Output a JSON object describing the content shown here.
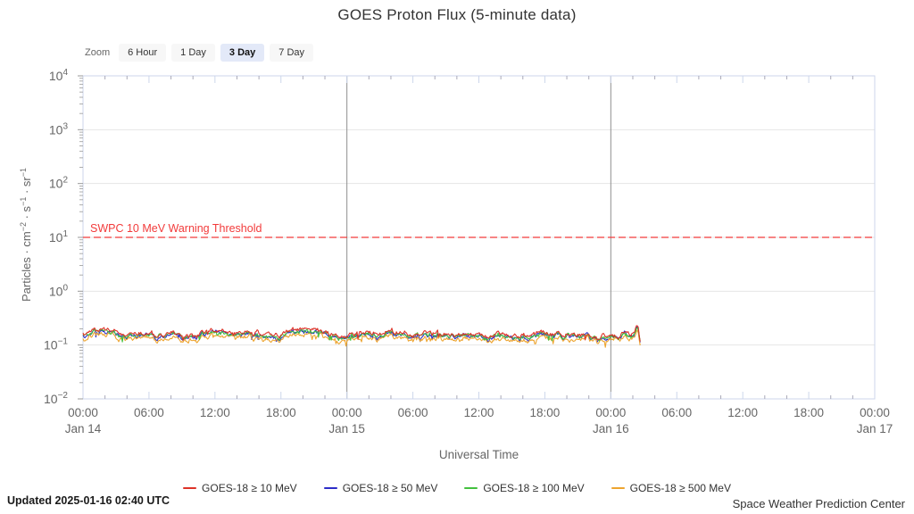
{
  "page": {
    "title": "GOES Proton Flux (5-minute data)"
  },
  "zoom_toolbar": {
    "label": "Zoom",
    "options": [
      "6 Hour",
      "1 Day",
      "3 Day",
      "7 Day"
    ],
    "selected": "3 Day"
  },
  "chart_data": {
    "type": "line",
    "title": "GOES Proton Flux (5-minute data)",
    "xlabel": "Universal Time",
    "ylabel": "Particles · cm⁻² · s⁻¹ · sr⁻¹",
    "ylabel_parts": [
      {
        "t": "Particles · cm"
      },
      {
        "t": "−2",
        "sup": true
      },
      {
        "t": " · s"
      },
      {
        "t": "−1",
        "sup": true
      },
      {
        "t": " · sr"
      },
      {
        "t": "−1",
        "sup": true
      }
    ],
    "x_axis": {
      "total_hours": 72,
      "major_tick_hours": 6,
      "minor_tick_hours": 2,
      "time_labels": [
        "00:00",
        "06:00",
        "12:00",
        "18:00"
      ],
      "day_labels": [
        "Jan 14",
        "Jan 15",
        "Jan 16",
        "Jan 17"
      ]
    },
    "y_axis": {
      "scale": "log",
      "exponent_ticks": [
        4,
        3,
        2,
        1,
        0,
        -1,
        -2
      ],
      "range": [
        0.01,
        10000
      ]
    },
    "grid": {
      "horizontal_decades": true,
      "day_separators": [
        "Jan 15 00:00",
        "Jan 16 00:00"
      ]
    },
    "threshold": {
      "label": "SWPC 10 MeV Warning Threshold",
      "value": 10,
      "color": "#f23b3b"
    },
    "series": [
      {
        "name": "GOES-18 ≥ 10 MeV",
        "color": "#dd3328",
        "baseline_flux": 0.162
      },
      {
        "name": "GOES-18 ≥ 50 MeV",
        "color": "#2d2dc8",
        "baseline_flux": 0.148
      },
      {
        "name": "GOES-18 ≥ 100 MeV",
        "color": "#43c13e",
        "baseline_flux": 0.151
      },
      {
        "name": "GOES-18 ≥ 500 MeV",
        "color": "#eda42f",
        "baseline_flux": 0.131
      }
    ],
    "data_coverage": {
      "start": "Jan 14 00:00",
      "end": "Jan 16 02:40",
      "cadence_minutes": 5,
      "approx_flux_band": [
        0.11,
        0.2
      ]
    }
  },
  "footer": {
    "updated": "Updated 2025-01-16 02:40 UTC",
    "source": "Space Weather Prediction Center"
  }
}
